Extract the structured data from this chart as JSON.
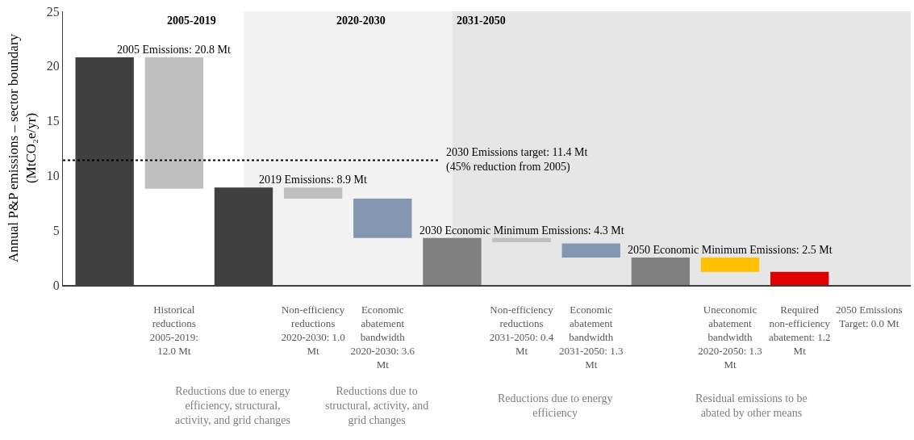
{
  "chart_data": {
    "type": "bar",
    "ylabel": "Annual P&P emissions – sector boundary (MtCO₂e/yr)",
    "categories": [
      null,
      "Historical reductions 2005-2019: 12.0 Mt",
      null,
      "Non-efficiency reductions 2020-2030: 1.0 Mt",
      "Economic abatement bandwidth 2020-2030: 3.6 Mt",
      null,
      "Non-efficiency reductions 2031-2050: 0.4 Mt",
      "Economic abatement bandwidth 2031-2050: 1.3 Mt",
      null,
      "Uneconomic abatement bandwidth 2020-2050: 1.3 Mt",
      "Required non-efficiency abatement: 1.2 Mt",
      "2050 Emissions Target: 0.0 Mt"
    ],
    "values": [
      20.8,
      12.0,
      8.9,
      1.0,
      3.6,
      4.3,
      0.4,
      1.3,
      2.5,
      1.3,
      1.2,
      0.0
    ],
    "base": [
      0,
      8.8,
      0,
      7.9,
      4.3,
      0,
      3.9,
      2.5,
      0,
      1.2,
      0,
      null
    ],
    "colors": [
      "#404040",
      "#bfbfbf",
      "#404040",
      "#bfbfbf",
      "#8497b0",
      "#808080",
      "#bfbfbf",
      "#8497b0",
      "#808080",
      "#ffc000",
      "#e00000",
      "#262626"
    ],
    "ylim": [
      0,
      25
    ],
    "yticks": [
      0,
      5,
      10,
      15,
      20,
      25
    ],
    "grid": false,
    "ref_lines": [
      {
        "axis": "y",
        "value": 11.4,
        "label": "2030 Emissions target: 11.4 Mt\n(45% reduction from 2005)",
        "line_style": "dotted",
        "color": "#000000"
      }
    ],
    "annotations": [
      "2005-2019",
      "2020-2030",
      "2031-2050",
      {
        "text": "2005 Emissions: 20.8 Mt",
        "x": "Historical reductions 2005-2019: 12.0 Mt",
        "y": 20.8
      },
      {
        "text": "2019 Emissions: 8.9 Mt",
        "x": "Non-efficiency reductions 2020-2030: 1.0 Mt",
        "y": 8.9
      },
      {
        "text": "2030 Economic Minimum Emissions: 4.3 Mt",
        "x": "Non-efficiency reductions 2031-2050: 0.4 Mt",
        "y": 4.3
      },
      {
        "text": "2050 Economic Minimum Emissions: 2.5 Mt",
        "x": "Uneconomic abatement bandwidth 2020-2050: 1.3 Mt",
        "y": 2.5
      },
      "Reductions due to energy efficiency, structural, activity, and grid changes",
      "Reductions due to structural, activity, and grid changes",
      "Reductions due to energy efficiency",
      "Residual emissions to be abated by other means"
    ]
  }
}
